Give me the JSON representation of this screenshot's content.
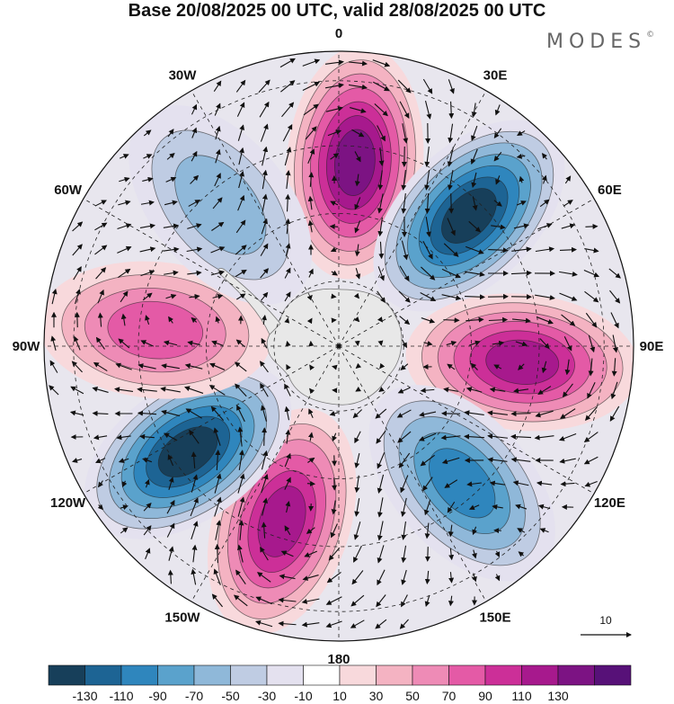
{
  "title": "Base 20/08/2025 00 UTC, valid 28/08/2025 00 UTC",
  "brand": {
    "name": "MODES",
    "mark": "©"
  },
  "longitude_labels": [
    {
      "id": "lon-0",
      "text": "0",
      "lon": 0
    },
    {
      "id": "lon-30e",
      "text": "30E",
      "lon": 30
    },
    {
      "id": "lon-60e",
      "text": "60E",
      "lon": 60
    },
    {
      "id": "lon-90e",
      "text": "90E",
      "lon": 90
    },
    {
      "id": "lon-120e",
      "text": "120E",
      "lon": 120
    },
    {
      "id": "lon-150e",
      "text": "150E",
      "lon": 150
    },
    {
      "id": "lon-180",
      "text": "180",
      "lon": 180
    },
    {
      "id": "lon-150w",
      "text": "150W",
      "lon": -150
    },
    {
      "id": "lon-120w",
      "text": "120W",
      "lon": -120
    },
    {
      "id": "lon-90w",
      "text": "90W",
      "lon": -90
    },
    {
      "id": "lon-60w",
      "text": "60W",
      "lon": -60
    },
    {
      "id": "lon-30w",
      "text": "30W",
      "lon": -30
    }
  ],
  "anomaly_centers": [
    {
      "name": "positive-center-0",
      "sign": "positive",
      "lon": 5,
      "strength": 130
    },
    {
      "name": "negative-center-45e",
      "sign": "negative",
      "lon": 45,
      "strength": 130
    },
    {
      "name": "positive-center-95e",
      "sign": "positive",
      "lon": 95,
      "strength": 115
    },
    {
      "name": "negative-center-140e",
      "sign": "negative",
      "lon": 138,
      "strength": 90
    },
    {
      "name": "positive-center-160w",
      "sign": "positive",
      "lon": -162,
      "strength": 115
    },
    {
      "name": "negative-center-125w",
      "sign": "negative",
      "lon": -125,
      "strength": 130
    },
    {
      "name": "positive-center-85w",
      "sign": "positive",
      "lon": -85,
      "strength": 85
    },
    {
      "name": "negative-center-40w",
      "sign": "negative",
      "lon": -40,
      "strength": 55
    }
  ],
  "colorbar": {
    "colors": [
      "#173f5a",
      "#1d6494",
      "#2f86bd",
      "#5aa2cc",
      "#8fb8d9",
      "#bfcce3",
      "#e4e1ef",
      "#ffffff",
      "#f8d9dc",
      "#f4b3c2",
      "#ee8bb6",
      "#e45aa6",
      "#cc2f98",
      "#a7198d",
      "#7c1383",
      "#571178"
    ],
    "labels": [
      "-130",
      "-110",
      "-90",
      "-70",
      "-50",
      "-30",
      "-10",
      "10",
      "30",
      "50",
      "70",
      "90",
      "110",
      "130"
    ]
  },
  "wind_reference": {
    "label": "10"
  },
  "colors": {
    "land": "#e8e8e8",
    "grid": "#222222",
    "coast": "#777777"
  }
}
